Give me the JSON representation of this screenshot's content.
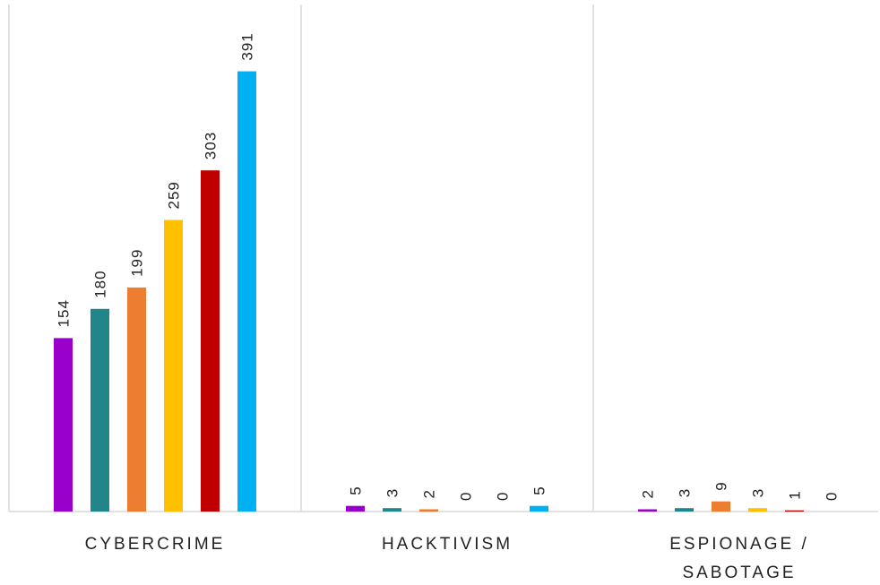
{
  "chart_data": {
    "type": "bar",
    "title": "",
    "xlabel": "",
    "ylabel": "",
    "ylim": [
      0,
      440
    ],
    "grid": false,
    "legend": "none",
    "categories": [
      [
        "CYBERCRIME"
      ],
      [
        "HACKTIVISM"
      ],
      [
        "ESPIONAGE /",
        "SABOTAGE"
      ]
    ],
    "series": [
      {
        "values": [
          154,
          5,
          2
        ],
        "color": "#9900CC"
      },
      {
        "values": [
          180,
          3,
          3
        ],
        "color": "#21868C"
      },
      {
        "values": [
          199,
          2,
          9
        ],
        "color": "#ED7D31"
      },
      {
        "values": [
          259,
          0,
          3
        ],
        "color": "#FFC000"
      },
      {
        "values": [
          303,
          0,
          1
        ],
        "color": "#C00000"
      },
      {
        "values": [
          391,
          5,
          0
        ],
        "color": "#00B0F0"
      }
    ],
    "separator_color": "#D9D9D9"
  }
}
